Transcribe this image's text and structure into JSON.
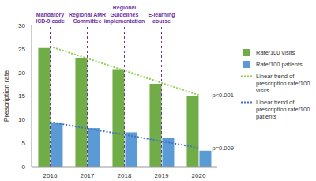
{
  "chart_data": {
    "type": "bar",
    "categories": [
      "2016",
      "2017",
      "2018",
      "2019",
      "2020"
    ],
    "y_label": "Prescription rate",
    "ylim": [
      0,
      30
    ],
    "yticks": [
      0,
      5,
      10,
      15,
      20,
      25,
      30
    ],
    "grid": false,
    "legend": "right",
    "series": [
      {
        "name": "Rate/100 visits",
        "color": "#70ad47",
        "values": [
          25.2,
          23.1,
          20.7,
          17.6,
          15.1
        ]
      },
      {
        "name": "Rate/100 patients",
        "color": "#5b9bd5",
        "values": [
          9.4,
          8.2,
          7.3,
          6.2,
          3.4
        ]
      },
      {
        "name": "Linear trend of prescription rate/100 visits",
        "type": "line",
        "line_style": "dotted",
        "color": "#92d050",
        "values": [
          25.5,
          23.0,
          20.4,
          17.8,
          15.2
        ],
        "label": "p<0.001"
      },
      {
        "name": "Linear trend of prescription rate/100 patients",
        "type": "line",
        "line_style": "dotted",
        "color": "#4472c4",
        "values": [
          9.5,
          8.1,
          6.8,
          5.4,
          4.0
        ],
        "label": "p=0.009"
      }
    ],
    "annotations": [
      {
        "x": "2016",
        "text": "Mandatory ICD-9 code"
      },
      {
        "x": "2017",
        "text": "Regional AMR Committee"
      },
      {
        "x": "2018",
        "text": "Regional Guidelines implementation"
      },
      {
        "x": "2019",
        "text": "E-learning course"
      }
    ]
  }
}
